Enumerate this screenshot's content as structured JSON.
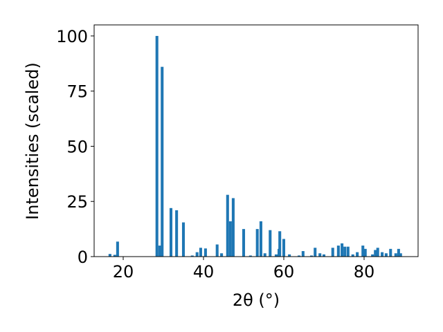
{
  "chart_data": {
    "type": "bar",
    "xlabel": "2θ (°)",
    "ylabel": "Intensities (scaled)",
    "color": "#1f77b4",
    "x": [
      16.7,
      17.9,
      18.6,
      28.4,
      29.1,
      29.7,
      31.9,
      33.3,
      35.0,
      37.2,
      38.4,
      39.3,
      40.5,
      43.4,
      44.5,
      46.0,
      46.7,
      47.4,
      50.0,
      51.7,
      53.4,
      54.3,
      55.3,
      56.6,
      58.1,
      58.8,
      59.0,
      60.0,
      61.4,
      63.8,
      64.8,
      66.9,
      67.8,
      69.0,
      70.0,
      72.2,
      73.6,
      74.5,
      75.2,
      76.0,
      77.2,
      78.3,
      79.7,
      80.3,
      82.1,
      82.8,
      83.4,
      84.5,
      85.5,
      86.6,
      87.9,
      88.6,
      89.1
    ],
    "values": [
      1.2,
      0.8,
      6.8,
      100,
      5,
      86,
      22,
      21,
      15.5,
      0.5,
      2,
      4,
      3.7,
      5.5,
      1.5,
      28,
      16,
      26.5,
      12.5,
      0.5,
      12.5,
      16,
      1.5,
      12,
      1,
      3.5,
      11.5,
      8,
      1,
      0.5,
      2.5,
      0.5,
      4,
      1.5,
      1,
      4,
      5,
      6,
      4.5,
      4.5,
      1,
      2,
      5,
      3.5,
      1,
      3,
      4,
      2,
      1.5,
      3.5,
      1.5,
      3.5,
      1.5
    ],
    "xlim": [
      12.76,
      93.45
    ],
    "ylim": [
      0,
      105
    ],
    "xticks": [
      20,
      40,
      60,
      80
    ],
    "yticks": [
      0,
      25,
      50,
      75,
      100
    ]
  }
}
